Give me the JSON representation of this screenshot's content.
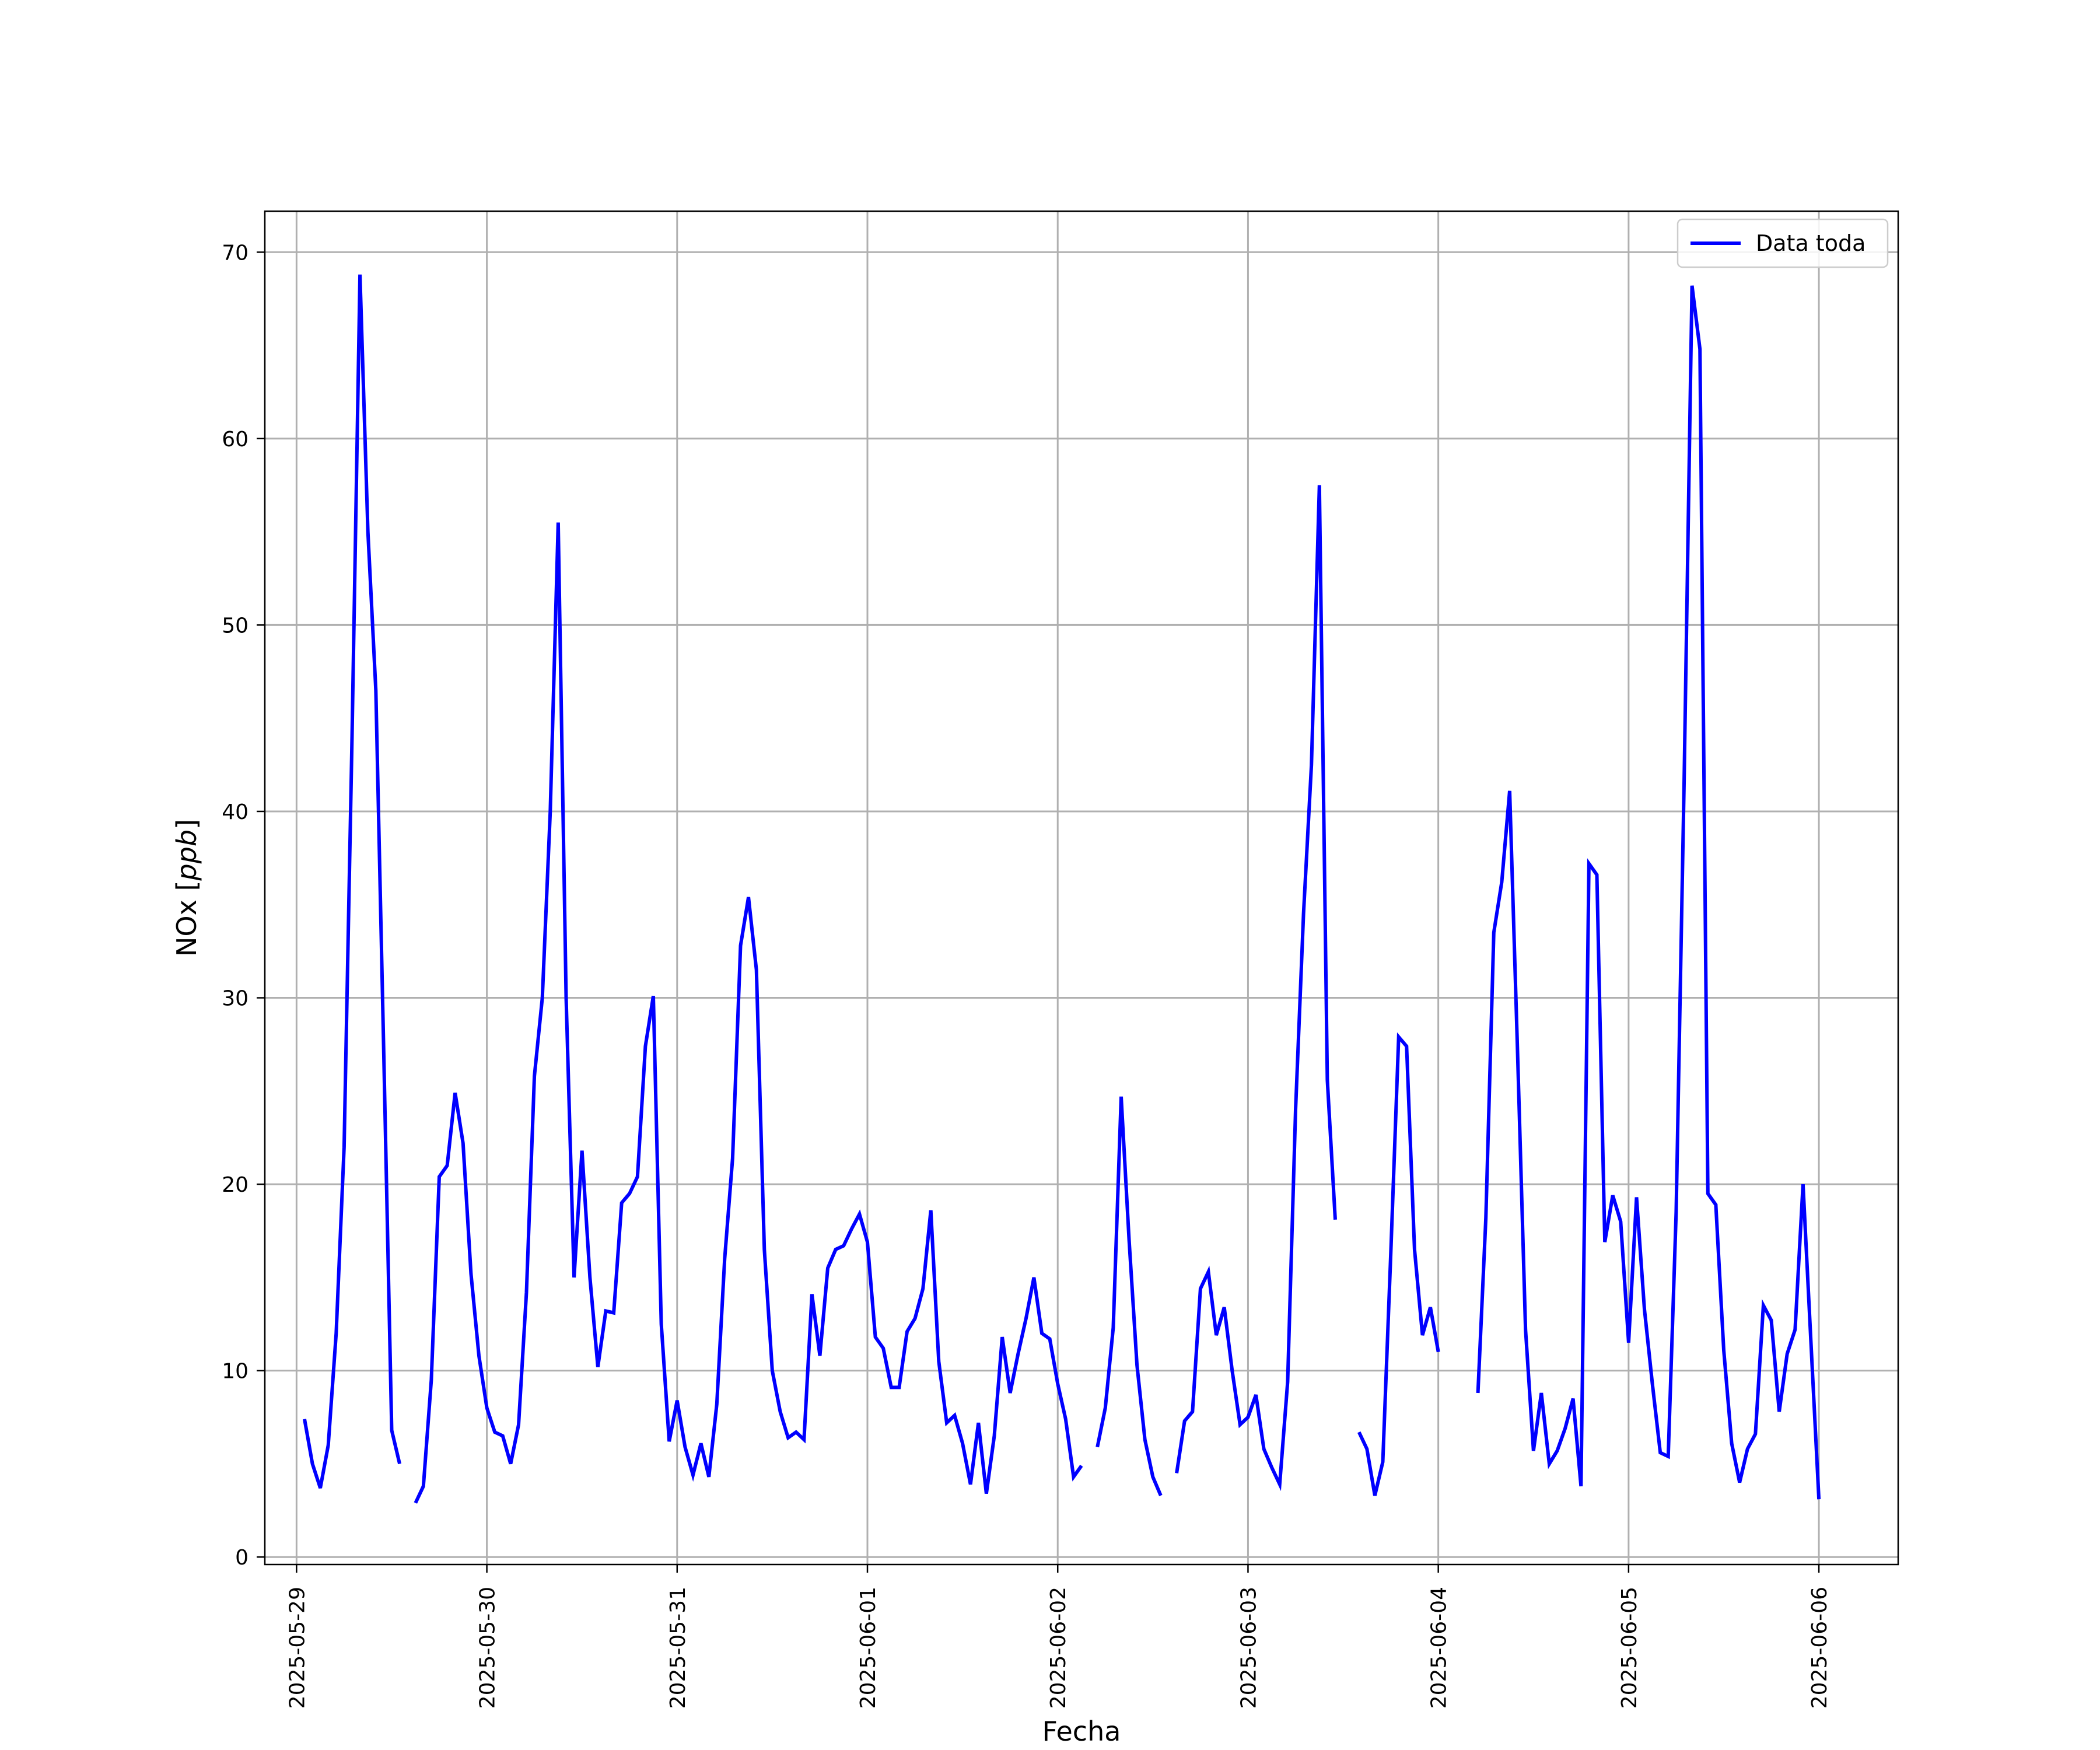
{
  "chart_data": {
    "type": "line",
    "title": "",
    "xlabel": "Fecha",
    "ylabel": "NOx [ppb]",
    "ylabel_main": "NOx ",
    "ylabel_unit": "ppb",
    "x_ticks": [
      "2025-05-29",
      "2025-05-30",
      "2025-05-31",
      "2025-06-01",
      "2025-06-02",
      "2025-06-03",
      "2025-06-04",
      "2025-06-05",
      "2025-06-06"
    ],
    "y_ticks": [
      0,
      10,
      20,
      30,
      40,
      50,
      60,
      70
    ],
    "xlim": [
      "2025-05-28T20:00",
      "2025-06-06T10:00"
    ],
    "ylim": [
      -0.4,
      72.2
    ],
    "grid": true,
    "legend": {
      "position": "upper-right",
      "entries": [
        "Data toda"
      ]
    },
    "series": [
      {
        "name": "Data toda",
        "color": "#0000ff",
        "segments": [
          {
            "start": "2025-05-29T01:00",
            "step_hours": 1,
            "values": [
              7.4,
              5.0,
              3.7,
              6.0,
              12.0,
              22.0,
              44.0,
              68.8,
              55.0,
              46.5,
              27.0,
              6.8,
              5.0
            ]
          },
          {
            "start": "2025-05-29T15:00",
            "step_hours": 1,
            "values": [
              2.9,
              3.8,
              9.5,
              20.4,
              21.0,
              24.9,
              22.2,
              15.2,
              10.8,
              8.0,
              6.7,
              6.5,
              5.0,
              7.1,
              14.2,
              25.8,
              30.0,
              40.0,
              55.5,
              30.0,
              15.0,
              21.8,
              15.0,
              10.2,
              13.2,
              13.1,
              19.0,
              19.5,
              20.4,
              27.4,
              30.1,
              12.5,
              6.2,
              8.4,
              5.9,
              4.4,
              6.1,
              4.3,
              8.2,
              16.0,
              21.4,
              32.8,
              35.4,
              31.5,
              16.5,
              10.0,
              7.8,
              6.4,
              6.7,
              6.3,
              14.1,
              10.8,
              15.5,
              16.5,
              16.7,
              17.6,
              18.4,
              16.9,
              11.8,
              11.2,
              9.1,
              9.1,
              12.1,
              12.8,
              14.4,
              18.6,
              10.5,
              7.2,
              7.6,
              6.1,
              3.9,
              7.2,
              3.4,
              6.5,
              11.8,
              8.8,
              10.9,
              12.8,
              15.0,
              12.0,
              11.7,
              9.3,
              7.4,
              4.3,
              4.9
            ]
          },
          {
            "start": "2025-06-02T05:00",
            "step_hours": 1,
            "values": [
              5.9,
              8.0,
              12.3,
              24.7,
              17.0,
              10.3,
              6.3,
              4.3,
              3.3
            ]
          },
          {
            "start": "2025-06-02T15:00",
            "step_hours": 1,
            "values": [
              4.5,
              7.3,
              7.8,
              14.4,
              15.3,
              11.9,
              13.4,
              10.0,
              7.1,
              7.5,
              8.7,
              5.8,
              4.8,
              3.9,
              9.4,
              24.0,
              34.5,
              42.5,
              57.5,
              25.6,
              18.1
            ]
          },
          {
            "start": "2025-06-03T14:00",
            "step_hours": 1,
            "values": [
              6.7,
              5.8,
              3.3,
              5.1,
              16.2,
              27.9,
              27.4,
              16.5,
              11.9,
              13.4,
              11.0
            ]
          },
          {
            "start": "2025-06-04T05:00",
            "step_hours": 1,
            "values": [
              8.8,
              18.2,
              33.5,
              36.2,
              41.1,
              27.0,
              12.2,
              5.7,
              8.8,
              5.0,
              5.7,
              6.9,
              8.5,
              3.8,
              37.2,
              36.6,
              16.9,
              19.4,
              18.0,
              11.5,
              19.3,
              13.3,
              9.3,
              5.6,
              5.4,
              18.5,
              41.5,
              68.2,
              64.8,
              19.5,
              18.9,
              11.1,
              6.1,
              4.0,
              5.8,
              6.6,
              13.5,
              12.7,
              7.8,
              10.9,
              12.2,
              20.0,
              11.5,
              3.1
            ]
          }
        ]
      }
    ]
  }
}
